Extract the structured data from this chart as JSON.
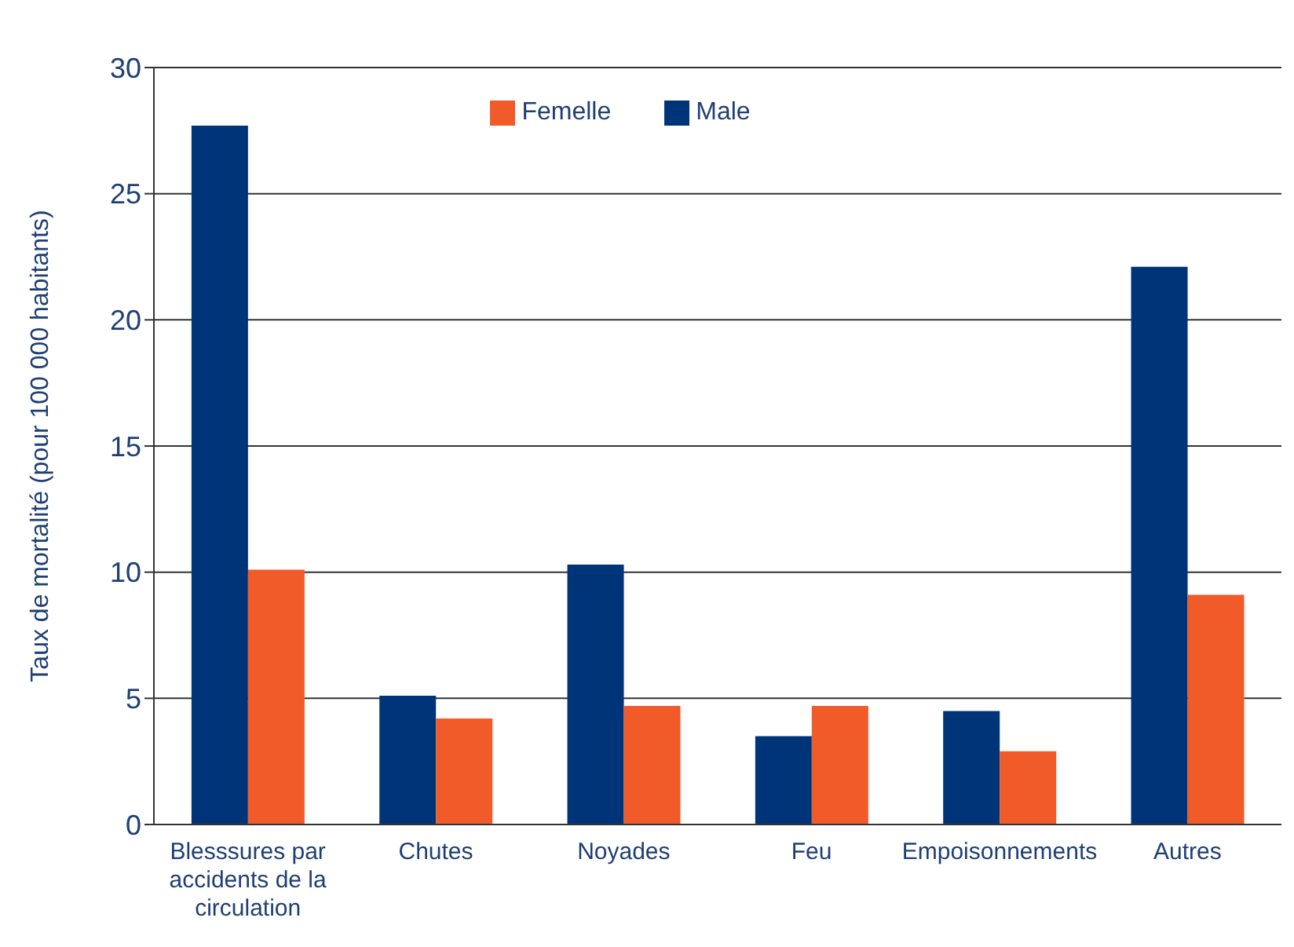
{
  "chart_data": {
    "type": "bar",
    "ylabel": "Taux de mortalité (pour 100 000 habitants)",
    "categories": [
      "Blesssures par accidents de la circulation",
      "Chutes",
      "Noyades",
      "Feu",
      "Empoisonnements",
      "Autres"
    ],
    "series": [
      {
        "name": "Male",
        "color": "#003478",
        "values": [
          27.7,
          5.1,
          10.3,
          3.5,
          4.5,
          22.1
        ]
      },
      {
        "name": "Femelle",
        "color": "#f15a29",
        "values": [
          10.1,
          4.2,
          4.7,
          4.7,
          2.9,
          9.1
        ]
      }
    ],
    "ylim": [
      0,
      30
    ],
    "yticks": [
      0,
      5,
      10,
      15,
      20,
      25,
      30
    ],
    "grid": "y",
    "legend": "top"
  }
}
